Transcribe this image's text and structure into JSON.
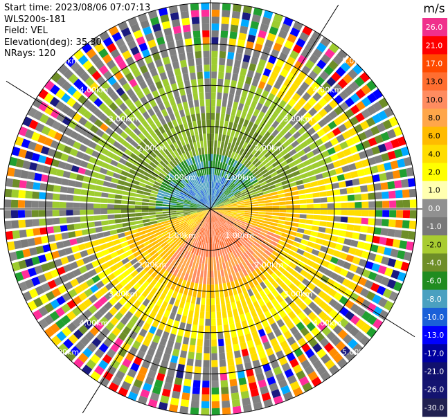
{
  "header": {
    "start_time": "Start time: 2023/08/06 07:07:13",
    "site": "WLS200s-181",
    "field": "Field: VEL",
    "elevation": "Elevation(deg): 35.30",
    "nrays": "NRays: 120"
  },
  "chart_data": {
    "type": "heatmap",
    "projection": "polar-ppi",
    "rays": 120,
    "max_range_km": 5.0,
    "range_rings_km": [
      1.0,
      2.0,
      3.0,
      4.0,
      5.0
    ],
    "ring_labels": [
      "1.00km",
      "2.00km",
      "3.00km",
      "4.00km",
      "5.00km"
    ],
    "colorbar": {
      "unit": "m/s",
      "ticks": [
        "26.0",
        "21.0",
        "17.0",
        "13.0",
        "10.0",
        "8.0",
        "6.0",
        "4.0",
        "2.0",
        "1.0",
        "0.0",
        "-1.0",
        "-2.0",
        "-4.0",
        "-6.0",
        "-8.0",
        "-10.0",
        "-13.0",
        "-17.0",
        "-21.0",
        "-26.0",
        "-30.0"
      ],
      "colors": [
        "#f0308c",
        "#ff0000",
        "#ff4a00",
        "#ff6e30",
        "#ff8c60",
        "#ffa64a",
        "#ffbb00",
        "#ffdd00",
        "#ffff00",
        "#ffffb0",
        "#909090",
        "#787878",
        "#a8cc30",
        "#6e8e28",
        "#208c20",
        "#4aa0c0",
        "#1a60d8",
        "#0000ff",
        "#0000a0",
        "#10106e",
        "#141470",
        "#202050"
      ]
    },
    "wind_field": {
      "description_values_mps": {
        "southeast_sector": "2.0 to 8.0",
        "northwest_sector": "-1.0 to -10.0",
        "outer_ring": "noise"
      }
    }
  }
}
